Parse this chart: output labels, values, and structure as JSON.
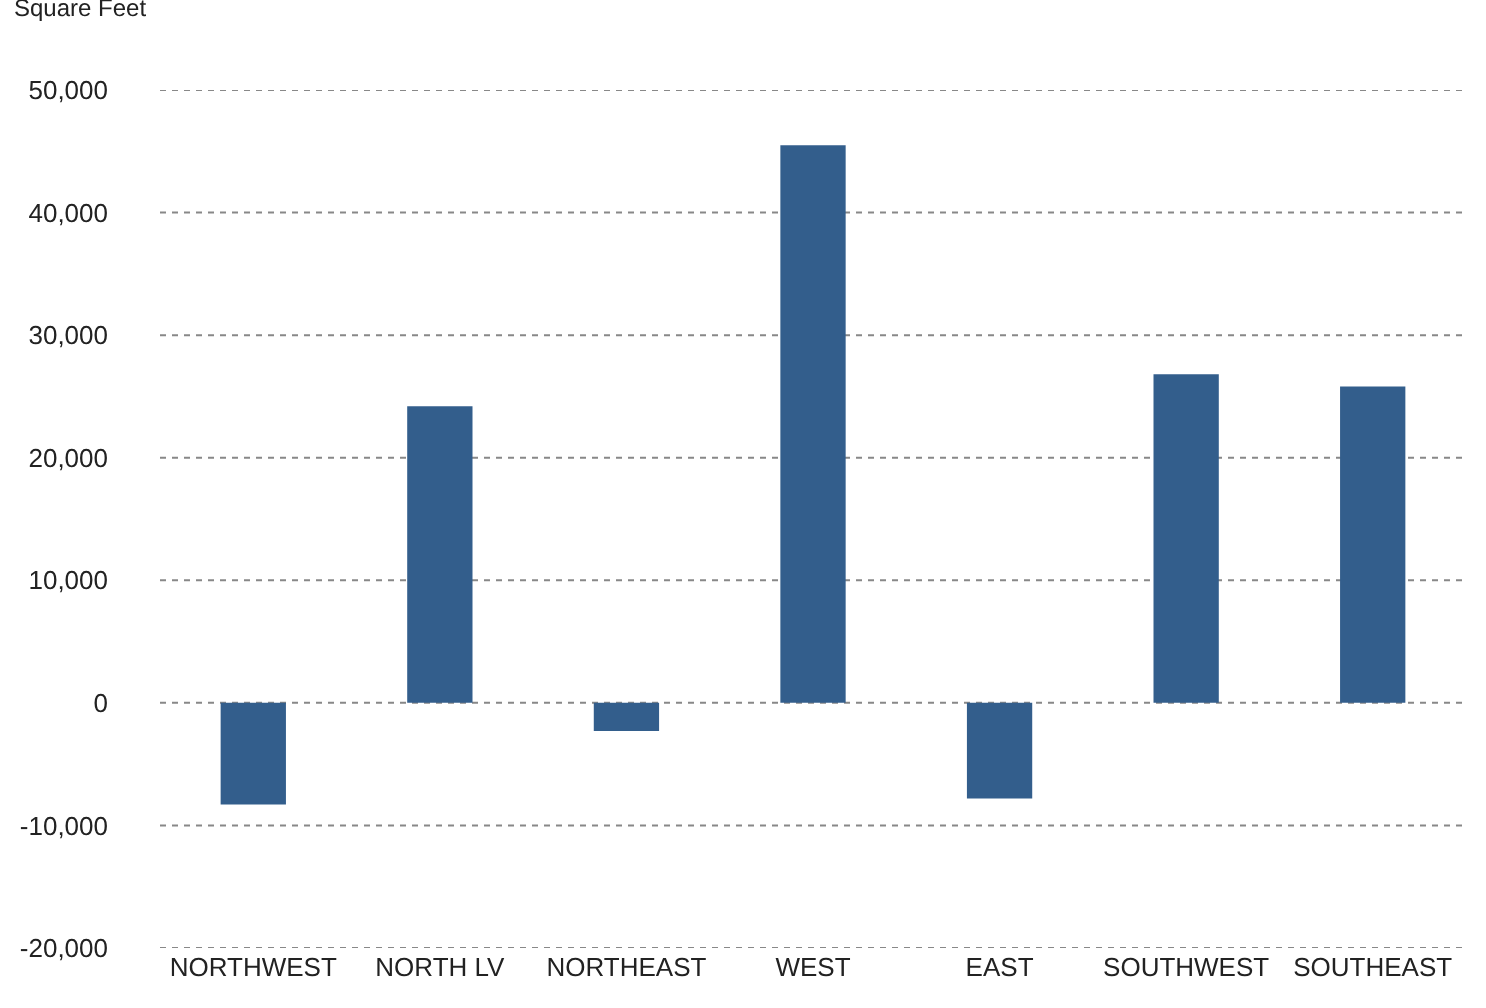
{
  "chart_data": {
    "type": "bar",
    "ylabel": "Square Feet",
    "categories": [
      "NORTHWEST",
      "NORTH LV",
      "NORTHEAST",
      "WEST",
      "EAST",
      "SOUTHWEST",
      "SOUTHEAST"
    ],
    "values": [
      -8300,
      24200,
      -2300,
      45500,
      -7800,
      26800,
      25800
    ],
    "color": "#335e8c",
    "ylim": [
      -20000,
      50000
    ],
    "yticks": [
      {
        "value": -20000,
        "label": "-20,000"
      },
      {
        "value": -10000,
        "label": "-10,000"
      },
      0,
      {
        "value": 10000,
        "label": "10,000"
      },
      {
        "value": 20000,
        "label": "20,000"
      },
      {
        "value": 30000,
        "label": "30,000"
      },
      {
        "value": 40000,
        "label": "40,000"
      },
      {
        "value": 50000,
        "label": "50,000"
      }
    ],
    "grid": "y",
    "legend": false
  }
}
